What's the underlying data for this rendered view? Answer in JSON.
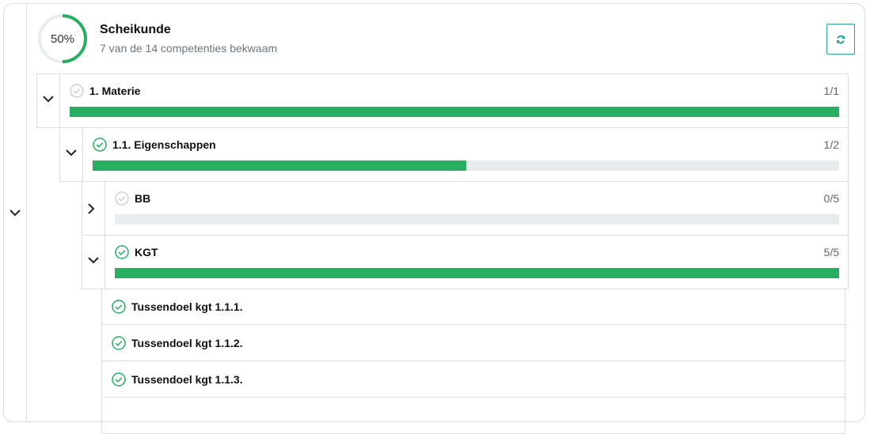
{
  "header": {
    "percent": "50%",
    "progress": 0.5,
    "title": "Scheikunde",
    "subtitle": "7 van de 14 competenties bekwaam",
    "refresh_icon": "refresh-icon"
  },
  "colors": {
    "accent": "#27ae60",
    "track": "#e9ecef",
    "refresh": "#2aa198"
  },
  "rows": [
    {
      "label": "1. Materie",
      "count": "1/1",
      "progress": 1.0,
      "check": "grey",
      "expanded": true
    },
    {
      "label": "1.1. Eigenschappen",
      "count": "1/2",
      "progress": 0.5,
      "check": "green",
      "expanded": true
    },
    {
      "label": "BB",
      "count": "0/5",
      "progress": 0,
      "check": "grey",
      "expanded": false
    },
    {
      "label": "KGT",
      "count": "5/5",
      "progress": 1.0,
      "check": "green",
      "expanded": true
    }
  ],
  "leaves": [
    {
      "label": "Tussendoel kgt 1.1.1."
    },
    {
      "label": "Tussendoel kgt 1.1.2."
    },
    {
      "label": "Tussendoel kgt 1.1.3."
    }
  ]
}
